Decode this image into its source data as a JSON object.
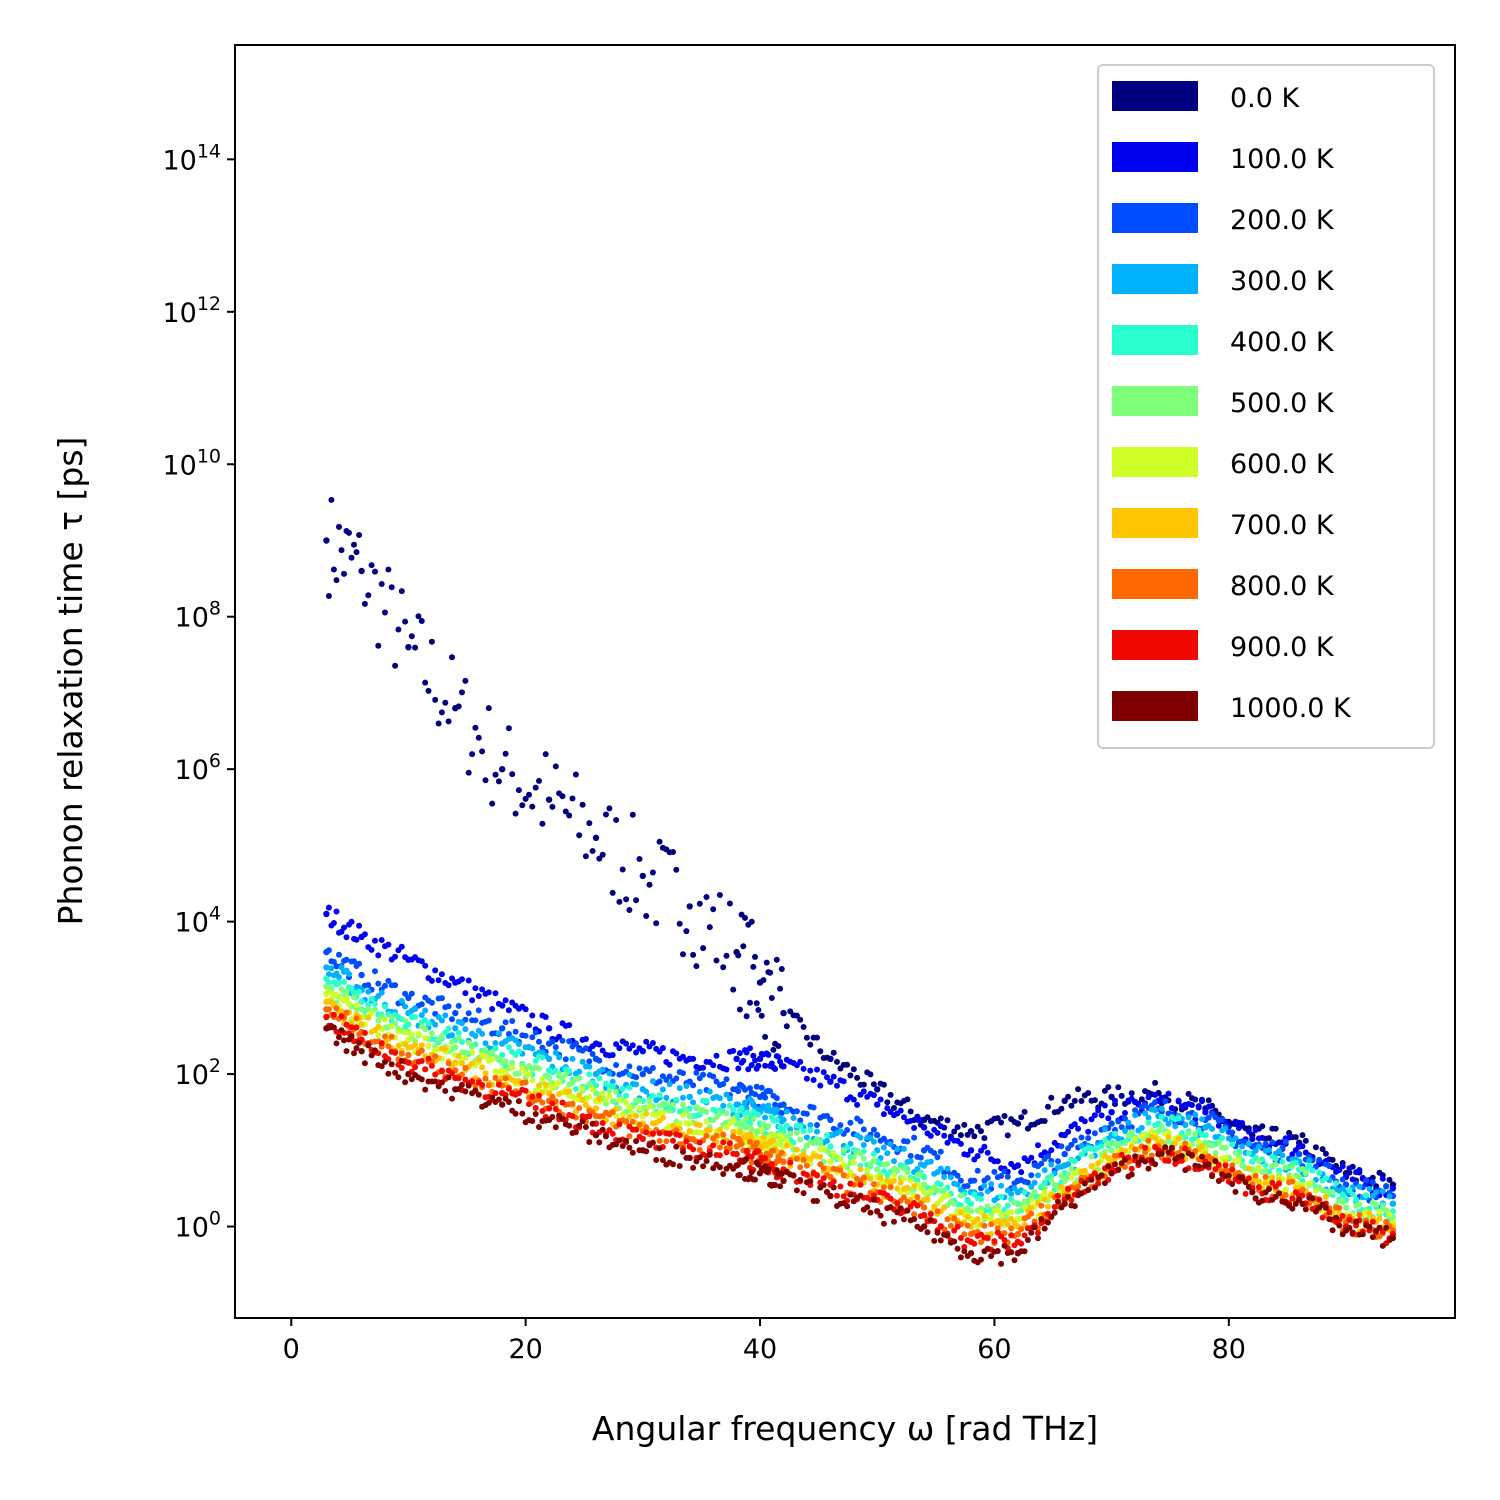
{
  "chart_data": {
    "type": "scatter",
    "title": "",
    "xlabel": "Angular frequency ω [rad THz]",
    "ylabel": "Phonon relaxation time τ [ps]",
    "xlim": [
      -4.8,
      99.3
    ],
    "ylim_log10": [
      -1.2,
      15.5
    ],
    "yscale": "log",
    "grid": false,
    "legend_position": "top-right",
    "x_ticks": [
      {
        "value": 0,
        "label": "0"
      },
      {
        "value": 20,
        "label": "20"
      },
      {
        "value": 40,
        "label": "40"
      },
      {
        "value": 60,
        "label": "60"
      },
      {
        "value": 80,
        "label": "80"
      }
    ],
    "y_ticks": [
      {
        "exponent": 0,
        "base": "10",
        "power": "0"
      },
      {
        "exponent": 2,
        "base": "10",
        "power": "2"
      },
      {
        "exponent": 4,
        "base": "10",
        "power": "4"
      },
      {
        "exponent": 6,
        "base": "10",
        "power": "6"
      },
      {
        "exponent": 8,
        "base": "10",
        "power": "8"
      },
      {
        "exponent": 10,
        "base": "10",
        "power": "10"
      },
      {
        "exponent": 12,
        "base": "10",
        "power": "12"
      },
      {
        "exponent": 14,
        "base": "10",
        "power": "14"
      }
    ],
    "series": [
      {
        "name": "0.0 K",
        "color": "#000080",
        "x": [
          3,
          6,
          10,
          14,
          18,
          22,
          26,
          30,
          34,
          38,
          40,
          42,
          46,
          50,
          54,
          58,
          62,
          66,
          70,
          74,
          78,
          82,
          86,
          90,
          94
        ],
        "log10_tau": [
          9.0,
          8.6,
          7.6,
          6.8,
          6.0,
          5.6,
          5.1,
          4.6,
          4.2,
          3.6,
          3.2,
          2.8,
          2.2,
          1.8,
          1.4,
          1.25,
          1.35,
          1.65,
          1.7,
          1.75,
          1.55,
          1.2,
          1.1,
          0.7,
          0.55
        ]
      },
      {
        "name": "100.0 K",
        "color": "#0000f1",
        "x": [
          3,
          6,
          10,
          14,
          18,
          22,
          26,
          30,
          34,
          38,
          40,
          42,
          46,
          50,
          54,
          58,
          62,
          66,
          70,
          74,
          78,
          82,
          86,
          90,
          94
        ],
        "log10_tau": [
          4.1,
          3.8,
          3.5,
          3.2,
          2.9,
          2.6,
          2.4,
          2.3,
          2.2,
          2.2,
          2.2,
          2.1,
          1.9,
          1.6,
          1.3,
          1.0,
          0.8,
          1.2,
          1.5,
          1.65,
          1.5,
          1.15,
          1.05,
          0.65,
          0.5
        ]
      },
      {
        "name": "200.0 K",
        "color": "#004dff",
        "x": [
          3,
          6,
          10,
          14,
          18,
          22,
          26,
          30,
          34,
          38,
          40,
          42,
          46,
          50,
          54,
          58,
          62,
          66,
          70,
          74,
          78,
          82,
          86,
          90,
          94
        ],
        "log10_tau": [
          3.6,
          3.3,
          3.0,
          2.8,
          2.6,
          2.4,
          2.2,
          2.0,
          1.9,
          1.8,
          1.7,
          1.6,
          1.4,
          1.2,
          1.0,
          0.6,
          0.6,
          0.95,
          1.35,
          1.55,
          1.4,
          1.05,
          0.95,
          0.55,
          0.4
        ]
      },
      {
        "name": "300.0 K",
        "color": "#00b1ff",
        "x": [
          3,
          6,
          10,
          14,
          18,
          22,
          26,
          30,
          34,
          38,
          40,
          42,
          46,
          50,
          54,
          58,
          62,
          66,
          70,
          74,
          78,
          82,
          86,
          90,
          94
        ],
        "log10_tau": [
          3.4,
          3.1,
          2.8,
          2.6,
          2.4,
          2.2,
          2.0,
          1.8,
          1.7,
          1.6,
          1.5,
          1.4,
          1.2,
          1.0,
          0.8,
          0.45,
          0.45,
          0.8,
          1.2,
          1.45,
          1.3,
          0.95,
          0.85,
          0.45,
          0.3
        ]
      },
      {
        "name": "400.0 K",
        "color": "#29ffce",
        "x": [
          3,
          6,
          10,
          14,
          18,
          22,
          26,
          30,
          34,
          38,
          40,
          42,
          46,
          50,
          54,
          58,
          62,
          66,
          70,
          74,
          78,
          82,
          86,
          90,
          94
        ],
        "log10_tau": [
          3.25,
          2.95,
          2.65,
          2.45,
          2.25,
          2.05,
          1.85,
          1.65,
          1.55,
          1.45,
          1.35,
          1.25,
          1.05,
          0.85,
          0.65,
          0.3,
          0.3,
          0.7,
          1.1,
          1.35,
          1.2,
          0.85,
          0.75,
          0.35,
          0.2
        ]
      },
      {
        "name": "500.0 K",
        "color": "#7dff7a",
        "x": [
          3,
          6,
          10,
          14,
          18,
          22,
          26,
          30,
          34,
          38,
          40,
          42,
          46,
          50,
          54,
          58,
          62,
          66,
          70,
          74,
          78,
          82,
          86,
          90,
          94
        ],
        "log10_tau": [
          3.15,
          2.85,
          2.55,
          2.35,
          2.15,
          1.95,
          1.75,
          1.55,
          1.45,
          1.35,
          1.25,
          1.15,
          0.95,
          0.75,
          0.55,
          0.2,
          0.2,
          0.6,
          1.0,
          1.25,
          1.1,
          0.75,
          0.65,
          0.25,
          0.12
        ]
      },
      {
        "name": "600.0 K",
        "color": "#ceff29",
        "x": [
          3,
          6,
          10,
          14,
          18,
          22,
          26,
          30,
          34,
          38,
          40,
          42,
          46,
          50,
          54,
          58,
          62,
          66,
          70,
          74,
          78,
          82,
          86,
          90,
          94
        ],
        "log10_tau": [
          3.05,
          2.75,
          2.45,
          2.25,
          2.05,
          1.85,
          1.65,
          1.45,
          1.35,
          1.25,
          1.15,
          1.05,
          0.85,
          0.65,
          0.45,
          0.1,
          0.1,
          0.5,
          0.9,
          1.15,
          1.0,
          0.65,
          0.55,
          0.15,
          0.05
        ]
      },
      {
        "name": "700.0 K",
        "color": "#ffc400",
        "x": [
          3,
          6,
          10,
          14,
          18,
          22,
          26,
          30,
          34,
          38,
          40,
          42,
          46,
          50,
          54,
          58,
          62,
          66,
          70,
          74,
          78,
          82,
          86,
          90,
          94
        ],
        "log10_tau": [
          2.95,
          2.65,
          2.35,
          2.15,
          1.95,
          1.75,
          1.55,
          1.35,
          1.25,
          1.15,
          1.05,
          0.95,
          0.75,
          0.55,
          0.35,
          0.0,
          0.0,
          0.45,
          0.85,
          1.1,
          0.95,
          0.6,
          0.5,
          0.1,
          0.0
        ]
      },
      {
        "name": "800.0 K",
        "color": "#ff6800",
        "x": [
          3,
          6,
          10,
          14,
          18,
          22,
          26,
          30,
          34,
          38,
          40,
          42,
          46,
          50,
          54,
          58,
          62,
          66,
          70,
          74,
          78,
          82,
          86,
          90,
          94
        ],
        "log10_tau": [
          2.85,
          2.55,
          2.25,
          2.05,
          1.85,
          1.65,
          1.45,
          1.25,
          1.15,
          1.05,
          0.95,
          0.85,
          0.65,
          0.45,
          0.25,
          -0.1,
          -0.1,
          0.4,
          0.8,
          1.05,
          0.9,
          0.55,
          0.45,
          0.05,
          -0.05
        ]
      },
      {
        "name": "900.0 K",
        "color": "#f10800",
        "x": [
          3,
          6,
          10,
          14,
          18,
          22,
          26,
          30,
          34,
          38,
          40,
          42,
          46,
          50,
          54,
          58,
          62,
          66,
          70,
          74,
          78,
          82,
          86,
          90,
          94
        ],
        "log10_tau": [
          2.75,
          2.45,
          2.15,
          1.95,
          1.75,
          1.55,
          1.35,
          1.15,
          1.05,
          0.95,
          0.85,
          0.75,
          0.55,
          0.35,
          0.15,
          -0.2,
          -0.2,
          0.35,
          0.75,
          1.0,
          0.85,
          0.5,
          0.4,
          0.0,
          -0.1
        ]
      },
      {
        "name": "1000.0 K",
        "color": "#800000",
        "x": [
          3,
          6,
          10,
          14,
          18,
          22,
          26,
          30,
          34,
          38,
          40,
          42,
          46,
          50,
          54,
          58,
          62,
          66,
          70,
          74,
          78,
          82,
          86,
          90,
          94
        ],
        "log10_tau": [
          2.6,
          2.3,
          2.0,
          1.8,
          1.6,
          1.4,
          1.2,
          1.0,
          0.9,
          0.8,
          0.7,
          0.6,
          0.4,
          0.2,
          0.0,
          -0.35,
          -0.35,
          0.3,
          0.7,
          0.95,
          0.8,
          0.45,
          0.35,
          -0.05,
          -0.15
        ]
      }
    ]
  }
}
